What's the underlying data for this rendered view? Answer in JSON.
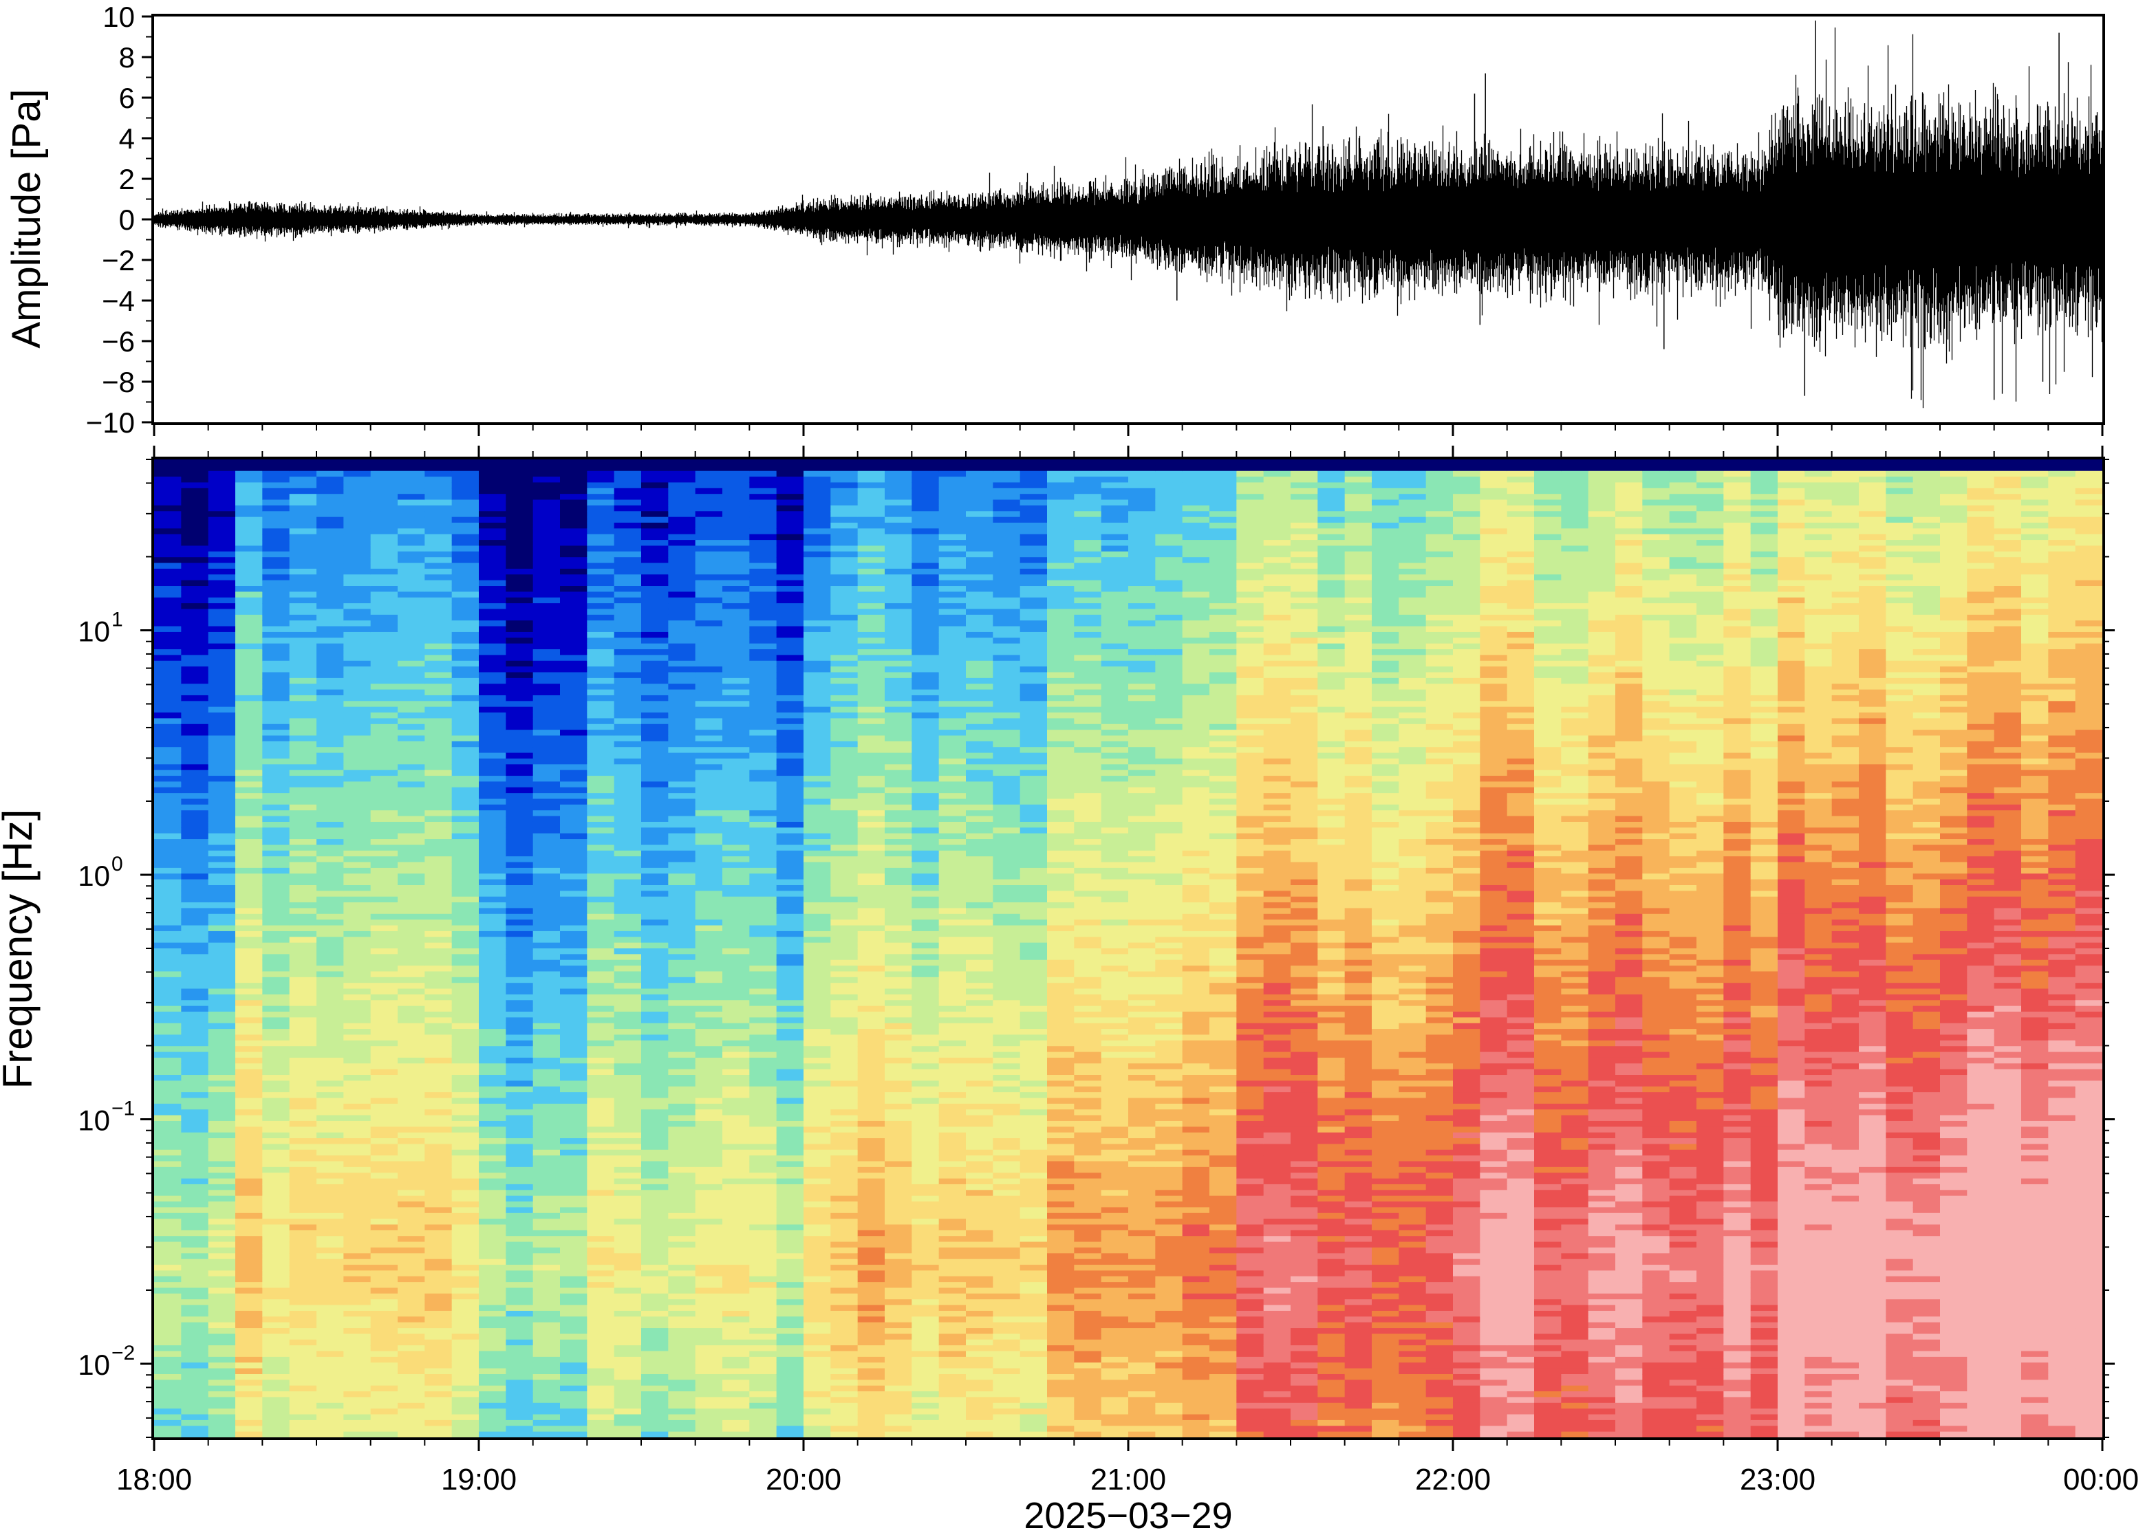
{
  "chart_data": [
    {
      "type": "line",
      "panel": "waveform",
      "ylabel": "Amplitude [Pa]",
      "ylim": [
        -10,
        10
      ],
      "y_ticks": [
        10,
        8,
        6,
        4,
        2,
        0,
        -2,
        -4,
        -6,
        -8,
        -10
      ],
      "y_tick_labels": [
        "10",
        "8",
        "6",
        "4",
        "2",
        "0",
        "−2",
        "−4",
        "−6",
        "−8",
        "−10"
      ],
      "xlim": [
        "18:00",
        "00:00"
      ],
      "line_color": "#000000",
      "envelope": {
        "time": [
          "18:00",
          "18:15",
          "18:30",
          "19:00",
          "19:30",
          "19:50",
          "20:05",
          "20:30",
          "20:45",
          "21:00",
          "21:10",
          "21:30",
          "21:45",
          "22:00",
          "22:15",
          "22:30",
          "22:45",
          "22:58",
          "23:00",
          "23:30",
          "23:55",
          "00:00"
        ],
        "amplitude": [
          0.3,
          0.8,
          0.7,
          0.25,
          0.25,
          0.3,
          1.0,
          1.2,
          1.6,
          1.8,
          2.4,
          3.2,
          3.5,
          3.3,
          3.6,
          3.2,
          3.2,
          3.4,
          5.4,
          5.4,
          5.0,
          5.0
        ]
      },
      "peaks": [
        {
          "time": "23:07",
          "value": 9.8
        },
        {
          "time": "23:05",
          "value": -8.7
        },
        {
          "time": "23:52",
          "value": 9.2
        },
        {
          "time": "23:40",
          "value": -8.9
        },
        {
          "time": "22:06",
          "value": 7.2
        },
        {
          "time": "22:04",
          "value": 6.2
        },
        {
          "time": "22:05",
          "value": -5.2
        },
        {
          "time": "22:39",
          "value": -6.4
        },
        {
          "time": "21:36",
          "value": 4.6
        },
        {
          "time": "21:09",
          "value": -4.0
        },
        {
          "time": "23:49",
          "value": -8.0
        }
      ]
    },
    {
      "type": "heatmap",
      "panel": "spectrogram",
      "ylabel": "Frequency [Hz]",
      "y_scale": "log",
      "ylim": [
        0.005,
        50
      ],
      "y_tick_labels": [
        {
          "base": "10",
          "exp": "1",
          "value": 10
        },
        {
          "base": "10",
          "exp": "0",
          "value": 1
        },
        {
          "base": "10",
          "exp": "−1",
          "value": 0.1
        },
        {
          "base": "10",
          "exp": "−2",
          "value": 0.01
        }
      ],
      "colormap": [
        "#000070",
        "#0000c8",
        "#0a5ae6",
        "#2896f0",
        "#50c8f0",
        "#8ae6b4",
        "#c8ee96",
        "#f0f08c",
        "#fadc78",
        "#f8b45a",
        "#f08040",
        "#eb5050",
        "#f07878",
        "#f8b0b0"
      ],
      "time_columns": 72,
      "column_profiles": [
        {
          "from": "18:00",
          "to": "18:15",
          "hf_level": 0.08,
          "slope": 0.88
        },
        {
          "from": "18:15",
          "to": "19:00",
          "hf_level": 0.24,
          "slope": 0.84
        },
        {
          "from": "19:00",
          "to": "19:20",
          "hf_level": 0.02,
          "slope": 0.88
        },
        {
          "from": "19:20",
          "to": "20:00",
          "hf_level": 0.12,
          "slope": 0.86
        },
        {
          "from": "20:00",
          "to": "20:45",
          "hf_level": 0.24,
          "slope": 0.9
        },
        {
          "from": "20:45",
          "to": "21:20",
          "hf_level": 0.34,
          "slope": 0.93
        },
        {
          "from": "21:20",
          "to": "22:00",
          "hf_level": 0.4,
          "slope": 1.0
        },
        {
          "from": "22:00",
          "to": "23:00",
          "hf_level": 0.46,
          "slope": 1.05
        },
        {
          "from": "23:00",
          "to": "00:00",
          "hf_level": 0.5,
          "slope": 1.1
        }
      ]
    }
  ],
  "x_axis": {
    "tick_labels": [
      "18:00",
      "19:00",
      "20:00",
      "21:00",
      "22:00",
      "23:00",
      "00:00"
    ],
    "date_label": "2025−03−29"
  }
}
